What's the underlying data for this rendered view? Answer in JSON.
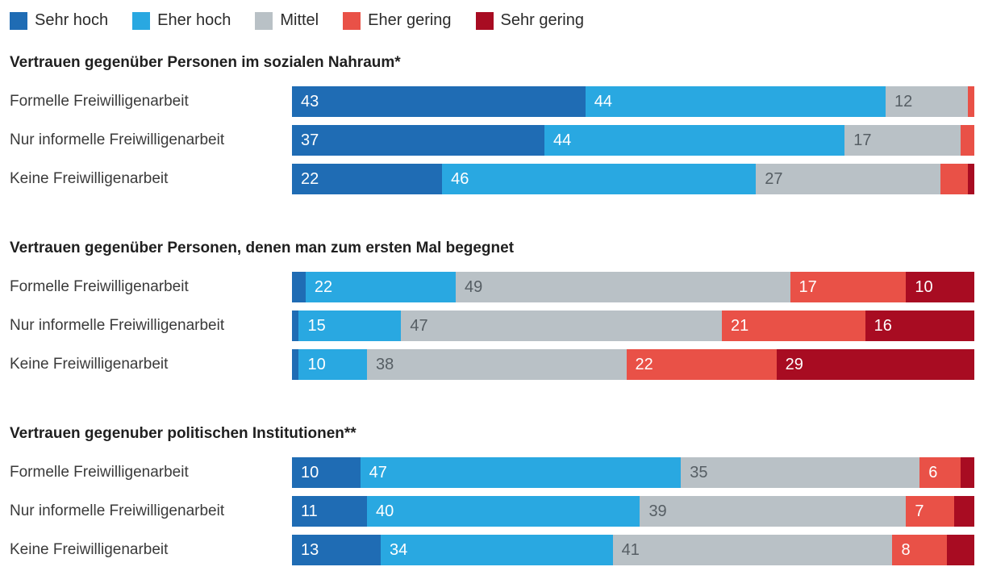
{
  "legend": [
    {
      "label": "Sehr hoch",
      "color": "#1f6cb4"
    },
    {
      "label": "Eher hoch",
      "color": "#29a8e1"
    },
    {
      "label": "Mittel",
      "color": "#b9c1c6"
    },
    {
      "label": "Eher gering",
      "color": "#e95147"
    },
    {
      "label": "Sehr gering",
      "color": "#a80c22"
    }
  ],
  "chart_data": {
    "type": "bar",
    "orientation": "horizontal",
    "stacked": true,
    "unit": "percent",
    "xlim": [
      0,
      100
    ],
    "legend_position": "top",
    "grid": false,
    "label_min": 6,
    "series_names": [
      "Sehr hoch",
      "Eher hoch",
      "Mittel",
      "Eher gering",
      "Sehr gering"
    ],
    "sections": [
      {
        "title": "Vertrauen gegenüber Personen im sozialen Nahraum*",
        "rows": [
          {
            "label": "Formelle Freiwilligenarbeit",
            "values": [
              43,
              44,
              12,
              1,
              0
            ]
          },
          {
            "label": "Nur informelle Freiwilligenarbeit",
            "values": [
              37,
              44,
              17,
              2,
              0
            ]
          },
          {
            "label": "Keine Freiwilligenarbeit",
            "values": [
              22,
              46,
              27,
              4,
              1
            ]
          }
        ]
      },
      {
        "title": "Vertrauen gegenüber Personen, denen man zum ersten Mal begegnet",
        "rows": [
          {
            "label": "Formelle Freiwilligenarbeit",
            "values": [
              2,
              22,
              49,
              17,
              10
            ]
          },
          {
            "label": "Nur informelle Freiwilligenarbeit",
            "values": [
              1,
              15,
              47,
              21,
              16
            ]
          },
          {
            "label": "Keine Freiwilligenarbeit",
            "values": [
              1,
              10,
              38,
              22,
              29
            ]
          }
        ]
      },
      {
        "title": "Vertrauen gegenuber politischen Institutionen**",
        "rows": [
          {
            "label": "Formelle Freiwilligenarbeit",
            "values": [
              10,
              47,
              35,
              6,
              2
            ]
          },
          {
            "label": "Nur informelle Freiwilligenarbeit",
            "values": [
              11,
              40,
              39,
              7,
              3
            ]
          },
          {
            "label": "Keine Freiwilligenarbeit",
            "values": [
              13,
              34,
              41,
              8,
              4
            ]
          }
        ]
      }
    ]
  }
}
